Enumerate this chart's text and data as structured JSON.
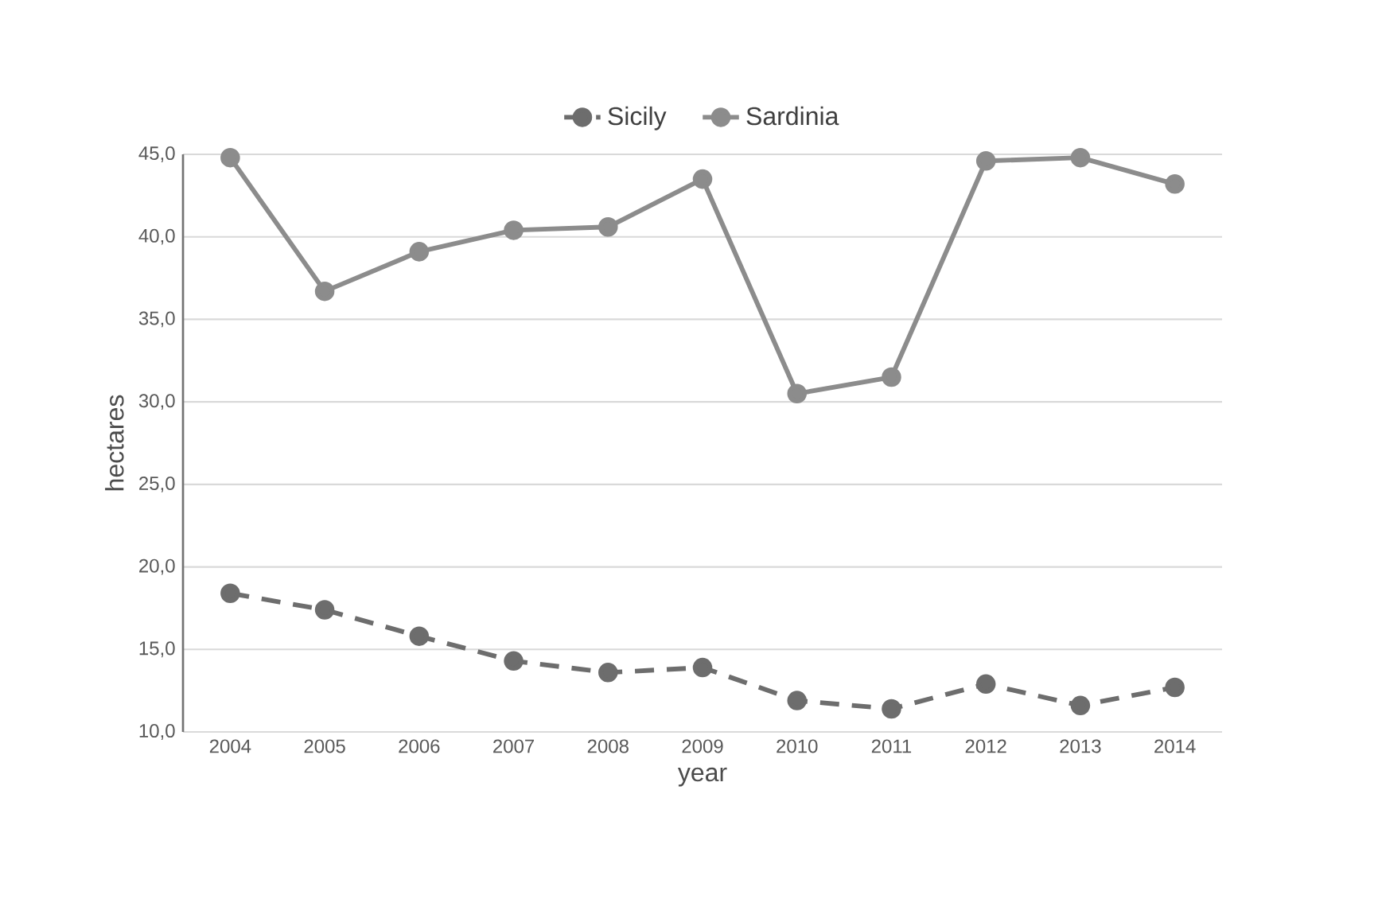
{
  "chart_data": {
    "type": "line",
    "xlabel": "year",
    "ylabel": "hectares",
    "categories": [
      "2004",
      "2005",
      "2006",
      "2007",
      "2008",
      "2009",
      "2010",
      "2011",
      "2012",
      "2013",
      "2014"
    ],
    "series": [
      {
        "name": "Sicily",
        "color": "#6d6d6d",
        "line_style": "dashed",
        "values": [
          18.4,
          17.4,
          15.8,
          14.3,
          13.6,
          13.9,
          11.9,
          11.4,
          12.9,
          11.6,
          12.7
        ]
      },
      {
        "name": "Sardinia",
        "color": "#8c8c8c",
        "line_style": "solid",
        "values": [
          44.8,
          36.7,
          39.1,
          40.4,
          40.6,
          43.5,
          30.5,
          31.5,
          44.6,
          44.8,
          43.2
        ]
      }
    ],
    "ylim": [
      10,
      45
    ],
    "yticks": [
      {
        "value": 10,
        "label": "10,0"
      },
      {
        "value": 15,
        "label": "15,0"
      },
      {
        "value": 20,
        "label": "20,0"
      },
      {
        "value": 25,
        "label": "25,0"
      },
      {
        "value": 30,
        "label": "30,0"
      },
      {
        "value": 35,
        "label": "35,0"
      },
      {
        "value": 40,
        "label": "40,0"
      },
      {
        "value": 45,
        "label": "45,0"
      }
    ],
    "grid": "y",
    "legend": "top",
    "marker": "circle"
  }
}
